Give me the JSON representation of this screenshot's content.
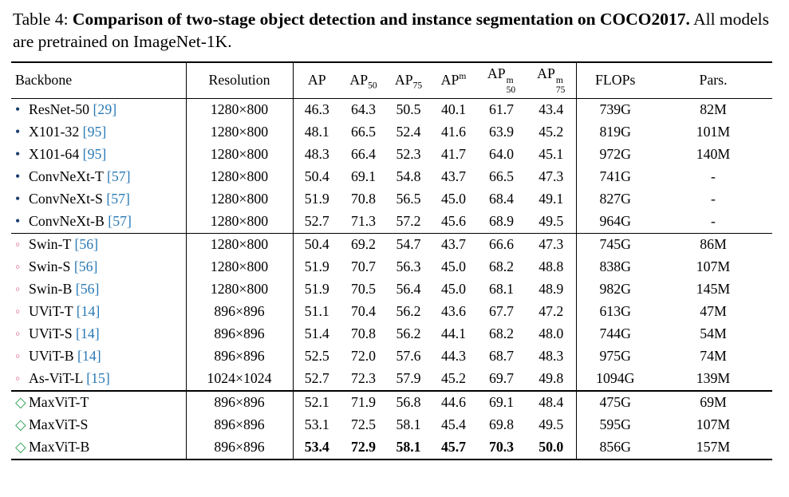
{
  "caption": {
    "label": "Table 4: ",
    "bold": "Comparison of two-stage object detection and instance segmentation on COCO2017.",
    "rest": " All models are pretrained on ImageNet-1K."
  },
  "colors": {
    "convnet_marker": "#1a3d6d",
    "transformer_marker": "#e0728f",
    "maxvit_marker": "#2f9e55",
    "citation": "#2979b5",
    "rule": "#000000",
    "background": "#ffffff"
  },
  "table": {
    "headers": [
      {
        "key": "backbone",
        "label": "Backbone"
      },
      {
        "key": "resolution",
        "label": "Resolution"
      },
      {
        "key": "ap",
        "label": "AP"
      },
      {
        "key": "ap50",
        "label": "AP",
        "sub": "50"
      },
      {
        "key": "ap75",
        "label": "AP",
        "sub": "75"
      },
      {
        "key": "apm",
        "label": "AP",
        "sup": "m"
      },
      {
        "key": "apm50",
        "label": "AP",
        "sup": "m",
        "sub": "50"
      },
      {
        "key": "apm75",
        "label": "AP",
        "sup": "m",
        "sub": "75"
      },
      {
        "key": "flops",
        "label": "FLOPs"
      },
      {
        "key": "pars",
        "label": "Pars."
      }
    ],
    "groups": [
      {
        "marker": "•",
        "marker_color": "#1a3d6d",
        "marker_name": "convnet-bullet-icon",
        "thick_separator": false,
        "rows": [
          {
            "name": "ResNet-50",
            "cite": "[29]",
            "resolution": "1280×800",
            "values": [
              "46.3",
              "64.3",
              "50.5",
              "40.1",
              "61.7",
              "43.4"
            ],
            "flops": "739G",
            "params": "82M"
          },
          {
            "name": "X101-32",
            "cite": "[95]",
            "resolution": "1280×800",
            "values": [
              "48.1",
              "66.5",
              "52.4",
              "41.6",
              "63.9",
              "45.2"
            ],
            "flops": "819G",
            "params": "101M"
          },
          {
            "name": "X101-64",
            "cite": "[95]",
            "resolution": "1280×800",
            "values": [
              "48.3",
              "66.4",
              "52.3",
              "41.7",
              "64.0",
              "45.1"
            ],
            "flops": "972G",
            "params": "140M"
          },
          {
            "name": "ConvNeXt-T",
            "cite": "[57]",
            "resolution": "1280×800",
            "values": [
              "50.4",
              "69.1",
              "54.8",
              "43.7",
              "66.5",
              "47.3"
            ],
            "flops": "741G",
            "params": "-"
          },
          {
            "name": "ConvNeXt-S",
            "cite": "[57]",
            "resolution": "1280×800",
            "values": [
              "51.9",
              "70.8",
              "56.5",
              "45.0",
              "68.4",
              "49.1"
            ],
            "flops": "827G",
            "params": "-"
          },
          {
            "name": "ConvNeXt-B",
            "cite": "[57]",
            "resolution": "1280×800",
            "values": [
              "52.7",
              "71.3",
              "57.2",
              "45.6",
              "68.9",
              "49.5"
            ],
            "flops": "964G",
            "params": "-"
          }
        ]
      },
      {
        "marker": "◦",
        "marker_color": "#e0728f",
        "marker_name": "transformer-circle-icon",
        "thick_separator": false,
        "rows": [
          {
            "name": "Swin-T",
            "cite": "[56]",
            "resolution": "1280×800",
            "values": [
              "50.4",
              "69.2",
              "54.7",
              "43.7",
              "66.6",
              "47.3"
            ],
            "flops": "745G",
            "params": "86M"
          },
          {
            "name": "Swin-S",
            "cite": "[56]",
            "resolution": "1280×800",
            "values": [
              "51.9",
              "70.7",
              "56.3",
              "45.0",
              "68.2",
              "48.8"
            ],
            "flops": "838G",
            "params": "107M"
          },
          {
            "name": "Swin-B",
            "cite": "[56]",
            "resolution": "1280×800",
            "values": [
              "51.9",
              "70.5",
              "56.4",
              "45.0",
              "68.1",
              "48.9"
            ],
            "flops": "982G",
            "params": "145M"
          },
          {
            "name": "UViT-T",
            "cite": "[14]",
            "resolution": "896×896",
            "values": [
              "51.1",
              "70.4",
              "56.2",
              "43.6",
              "67.7",
              "47.2"
            ],
            "flops": "613G",
            "params": "47M"
          },
          {
            "name": "UViT-S",
            "cite": "[14]",
            "resolution": "896×896",
            "values": [
              "51.4",
              "70.8",
              "56.2",
              "44.1",
              "68.2",
              "48.0"
            ],
            "flops": "744G",
            "params": "54M"
          },
          {
            "name": "UViT-B",
            "cite": "[14]",
            "resolution": "896×896",
            "values": [
              "52.5",
              "72.0",
              "57.6",
              "44.3",
              "68.7",
              "48.3"
            ],
            "flops": "975G",
            "params": "74M"
          },
          {
            "name": "As-ViT-L",
            "cite": "[15]",
            "resolution": "1024×1024",
            "values": [
              "52.7",
              "72.3",
              "57.9",
              "45.2",
              "69.7",
              "49.8"
            ],
            "flops": "1094G",
            "params": "139M"
          }
        ]
      },
      {
        "marker": "◇",
        "marker_color": "#2f9e55",
        "marker_name": "maxvit-diamond-icon",
        "thick_separator": true,
        "rows": [
          {
            "name": "MaxViT-T",
            "cite": "",
            "resolution": "896×896",
            "values": [
              "52.1",
              "71.9",
              "56.8",
              "44.6",
              "69.1",
              "48.4"
            ],
            "flops": "475G",
            "params": "69M"
          },
          {
            "name": "MaxViT-S",
            "cite": "",
            "resolution": "896×896",
            "values": [
              "53.1",
              "72.5",
              "58.1",
              "45.4",
              "69.8",
              "49.5"
            ],
            "flops": "595G",
            "params": "107M"
          },
          {
            "name": "MaxViT-B",
            "cite": "",
            "resolution": "896×896",
            "values": [
              "53.4",
              "72.9",
              "58.1",
              "45.7",
              "70.3",
              "50.0"
            ],
            "flops": "856G",
            "params": "157M",
            "bold_values": true
          }
        ]
      }
    ]
  }
}
